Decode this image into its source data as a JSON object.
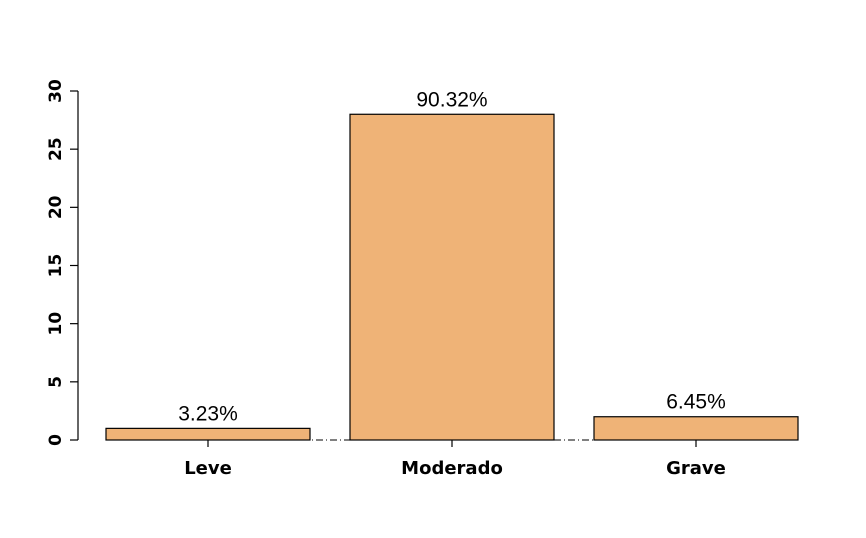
{
  "chart_data": {
    "type": "bar",
    "title": "",
    "xlabel": "",
    "ylabel": "",
    "categories": [
      "Leve",
      "Moderado",
      "Grave"
    ],
    "values": [
      1,
      28,
      2
    ],
    "data_labels": [
      "3.23%",
      "90.32%",
      "6.45%"
    ],
    "ylim": [
      0,
      30
    ],
    "yticks": [
      0,
      5,
      10,
      15,
      20,
      25,
      30
    ],
    "bar_color": "#EFB377",
    "grid": false,
    "legend": "none"
  }
}
